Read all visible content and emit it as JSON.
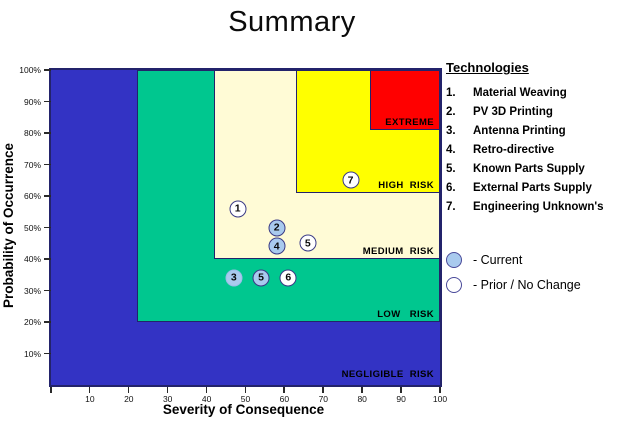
{
  "title": "Summary",
  "technologies": {
    "heading": "Technologies",
    "items": [
      {
        "num": "1.",
        "label": "Material Weaving"
      },
      {
        "num": "2.",
        "label": "PV 3D Printing"
      },
      {
        "num": "3.",
        "label": "Antenna Printing"
      },
      {
        "num": "4.",
        "label": "Retro-directive"
      },
      {
        "num": "5.",
        "label": "Known Parts Supply"
      },
      {
        "num": "6.",
        "label": "External Parts Supply"
      },
      {
        "num": "7.",
        "label": "Engineering Unknown's"
      }
    ]
  },
  "status_legend": [
    {
      "status": "current",
      "label": "- Current",
      "fill": "#A9CAEE"
    },
    {
      "status": "prior",
      "label": "- Prior / No Change",
      "fill": "#FFFFFF"
    }
  ],
  "colors": {
    "marker_border": "#3A3A85",
    "current_fill": "#A9CAEE",
    "prior_fill": "#FFFFFF",
    "zone_border": "#23236B"
  },
  "chart_data": {
    "type": "scatter",
    "title": "Summary",
    "xlabel": "Severity of Consequence",
    "ylabel": "Probability of Occurrence",
    "xlim": [
      0,
      100
    ],
    "ylim": [
      0,
      100
    ],
    "x_ticks": [
      0,
      10,
      20,
      30,
      40,
      50,
      60,
      70,
      80,
      90,
      100
    ],
    "y_ticks_percent": [
      10,
      20,
      30,
      40,
      50,
      60,
      70,
      80,
      90,
      100
    ],
    "grid": false,
    "risk_zones": [
      {
        "id": "negligible",
        "label": "NEGLIGIBLE  RISK",
        "color": "#3333C4",
        "x_min": 0,
        "y_min": 0
      },
      {
        "id": "low",
        "label": "LOW   RISK",
        "color": "#00C78F",
        "x_min": 22,
        "y_min": 20
      },
      {
        "id": "medium",
        "label": "MEDIUM  RISK",
        "color": "#FFFBD6",
        "x_min": 42,
        "y_min": 40
      },
      {
        "id": "high",
        "label": "HIGH  RISK",
        "color": "#FFFF00",
        "x_min": 63,
        "y_min": 61
      },
      {
        "id": "extreme",
        "label": "EXTREME",
        "color": "#FF0000",
        "x_min": 82,
        "y_min": 81
      }
    ],
    "points": [
      {
        "label": "1",
        "technology": "Material Weaving",
        "severity": 48,
        "probability": 56,
        "status": "prior"
      },
      {
        "label": "2",
        "technology": "PV 3D Printing",
        "severity": 58,
        "probability": 50,
        "status": "current"
      },
      {
        "label": "3",
        "technology": "Antenna Printing",
        "severity": 47,
        "probability": 34,
        "status": "current",
        "ring": "light"
      },
      {
        "label": "4",
        "technology": "Retro-directive",
        "severity": 58,
        "probability": 44,
        "status": "current"
      },
      {
        "label": "5",
        "technology": "Known Parts Supply",
        "severity": 54,
        "probability": 34,
        "status": "current"
      },
      {
        "label": "5",
        "technology": "Known Parts Supply",
        "severity": 66,
        "probability": 45,
        "status": "prior"
      },
      {
        "label": "6",
        "technology": "External Parts Supply",
        "severity": 61,
        "probability": 34,
        "status": "prior"
      },
      {
        "label": "7",
        "technology": "Engineering Unknown's",
        "severity": 77,
        "probability": 65,
        "status": "prior"
      }
    ]
  }
}
